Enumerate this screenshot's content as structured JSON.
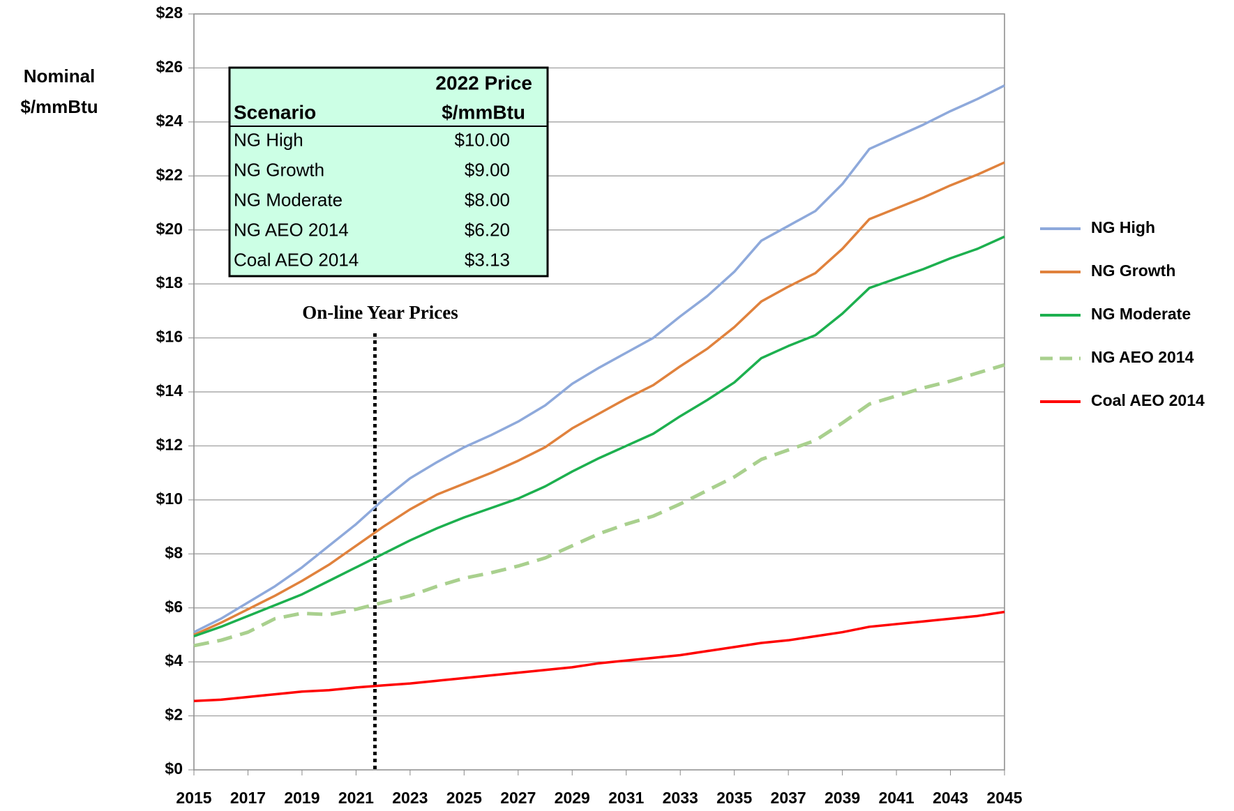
{
  "chart_data": {
    "type": "line",
    "ylabel": [
      "Nominal",
      "$/mmBtu"
    ],
    "x": [
      2015,
      2016,
      2017,
      2018,
      2019,
      2020,
      2021,
      2022,
      2023,
      2024,
      2025,
      2026,
      2027,
      2028,
      2029,
      2030,
      2031,
      2032,
      2033,
      2034,
      2035,
      2036,
      2037,
      2038,
      2039,
      2040,
      2041,
      2042,
      2043,
      2044,
      2045
    ],
    "xlim": [
      2015,
      2045
    ],
    "xticks": [
      2015,
      2017,
      2019,
      2021,
      2023,
      2025,
      2027,
      2029,
      2031,
      2033,
      2035,
      2037,
      2039,
      2041,
      2043,
      2045
    ],
    "ylim": [
      0,
      28
    ],
    "yticks": [
      {
        "value": 0,
        "label": "$0"
      },
      {
        "value": 2,
        "label": "$2"
      },
      {
        "value": 4,
        "label": "$4"
      },
      {
        "value": 6,
        "label": "$6"
      },
      {
        "value": 8,
        "label": "$8"
      },
      {
        "value": 10,
        "label": "$10"
      },
      {
        "value": 12,
        "label": "$12"
      },
      {
        "value": 14,
        "label": "$14"
      },
      {
        "value": 16,
        "label": "$16"
      },
      {
        "value": 18,
        "label": "$18"
      },
      {
        "value": 20,
        "label": "$20"
      },
      {
        "value": 22,
        "label": "$22"
      },
      {
        "value": 24,
        "label": "$24"
      },
      {
        "value": 26,
        "label": "$26"
      },
      {
        "value": 28,
        "label": "$28"
      }
    ],
    "grid": true,
    "legend": "right",
    "series": [
      {
        "name": "NG High",
        "color": "#8ea9db",
        "dashed": false,
        "values": [
          5.1,
          5.6,
          6.2,
          6.8,
          7.5,
          8.3,
          9.1,
          10.0,
          10.8,
          11.4,
          11.95,
          12.4,
          12.9,
          13.5,
          14.3,
          14.9,
          15.45,
          16.0,
          16.8,
          17.55,
          18.45,
          19.6,
          20.15,
          20.7,
          21.7,
          23.0,
          23.45,
          23.9,
          24.4,
          24.85,
          25.35
        ]
      },
      {
        "name": "NG Growth",
        "color": "#e0823d",
        "dashed": false,
        "values": [
          5.0,
          5.45,
          5.95,
          6.45,
          7.0,
          7.6,
          8.3,
          9.0,
          9.65,
          10.2,
          10.6,
          11.0,
          11.45,
          11.95,
          12.65,
          13.2,
          13.75,
          14.25,
          14.95,
          15.6,
          16.4,
          17.35,
          17.9,
          18.4,
          19.3,
          20.4,
          20.8,
          21.2,
          21.65,
          22.05,
          22.5
        ]
      },
      {
        "name": "NG Moderate",
        "color": "#1db04f",
        "dashed": false,
        "values": [
          4.95,
          5.3,
          5.7,
          6.1,
          6.5,
          7.0,
          7.5,
          8.0,
          8.5,
          8.95,
          9.35,
          9.7,
          10.05,
          10.5,
          11.05,
          11.55,
          12.0,
          12.45,
          13.1,
          13.7,
          14.35,
          15.25,
          15.7,
          16.1,
          16.9,
          17.85,
          18.2,
          18.55,
          18.95,
          19.3,
          19.75
        ]
      },
      {
        "name": "NG AEO 2014",
        "color": "#a9d08e",
        "dashed": true,
        "values": [
          4.6,
          4.8,
          5.1,
          5.6,
          5.8,
          5.75,
          5.95,
          6.2,
          6.45,
          6.8,
          7.1,
          7.3,
          7.55,
          7.85,
          8.3,
          8.75,
          9.1,
          9.4,
          9.85,
          10.35,
          10.85,
          11.5,
          11.85,
          12.2,
          12.85,
          13.55,
          13.85,
          14.15,
          14.4,
          14.7,
          15.0
        ]
      },
      {
        "name": "Coal AEO 2014",
        "color": "#ff0000",
        "dashed": false,
        "values": [
          2.55,
          2.6,
          2.7,
          2.8,
          2.9,
          2.95,
          3.05,
          3.13,
          3.2,
          3.3,
          3.4,
          3.5,
          3.6,
          3.7,
          3.8,
          3.95,
          4.05,
          4.15,
          4.25,
          4.4,
          4.55,
          4.7,
          4.8,
          4.95,
          5.1,
          5.3,
          5.4,
          5.5,
          5.6,
          5.7,
          5.85
        ]
      }
    ],
    "annotation": {
      "text": "On-line Year Prices",
      "x": 2021.7
    },
    "table": {
      "header": {
        "scenario": "Scenario",
        "price": [
          "2022 Price",
          "$/mmBtu"
        ]
      },
      "rows": [
        [
          "NG High",
          "$10.00"
        ],
        [
          "NG Growth",
          "$9.00"
        ],
        [
          "NG Moderate",
          "$8.00"
        ],
        [
          "NG AEO 2014",
          "$6.20"
        ],
        [
          "Coal AEO 2014",
          "$3.13"
        ]
      ]
    }
  }
}
